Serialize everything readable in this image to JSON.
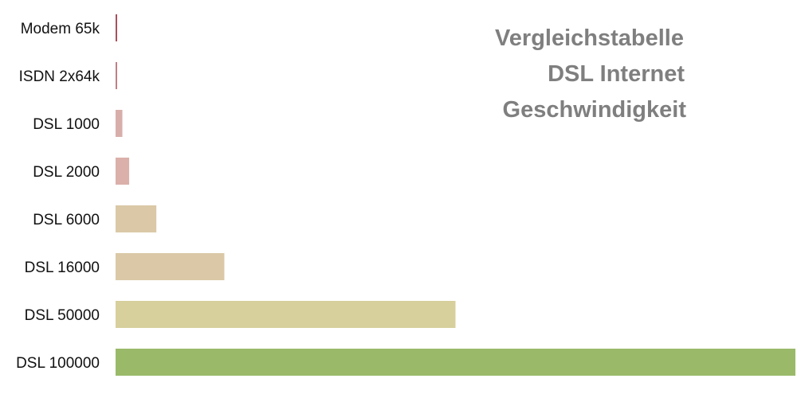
{
  "chart_data": {
    "type": "bar",
    "orientation": "horizontal",
    "title_lines": [
      "Vergleichstabelle",
      "DSL Internet",
      "Geschwindigkeit"
    ],
    "categories": [
      "Modem 65k",
      "ISDN 2x64k",
      "DSL 1000",
      "DSL 2000",
      "DSL 6000",
      "DSL 16000",
      "DSL 50000",
      "DSL 100000"
    ],
    "values": [
      65,
      128,
      1000,
      2000,
      6000,
      16000,
      50000,
      100000
    ],
    "colors": [
      "#a8505a",
      "#c07f86",
      "#d8aeab",
      "#dbb0aa",
      "#dac8a6",
      "#dac8a6",
      "#d7cf9c",
      "#9aba6a"
    ],
    "xlim": [
      0,
      100000
    ],
    "grid": false,
    "legend": "none"
  }
}
